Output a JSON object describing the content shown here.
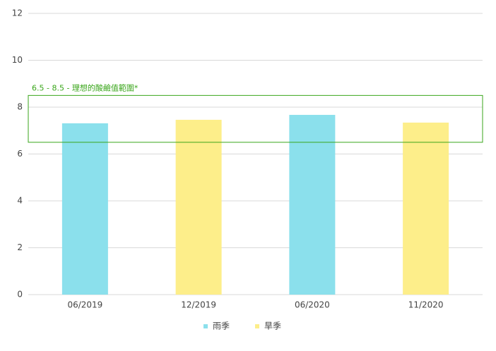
{
  "chart_data": {
    "type": "bar",
    "categories": [
      "06/2019",
      "12/2019",
      "06/2020",
      "11/2020"
    ],
    "series": [
      {
        "name": "雨季",
        "color": "#8be0ec",
        "values": [
          7.31,
          null,
          7.67,
          null
        ]
      },
      {
        "name": "旱季",
        "color": "#fdee8a",
        "values": [
          null,
          7.46,
          null,
          7.34
        ]
      }
    ],
    "ylim": [
      0,
      12
    ],
    "yticks": [
      0,
      2,
      4,
      6,
      8,
      10,
      12
    ],
    "grid": true,
    "band": {
      "from": 6.5,
      "to": 8.5,
      "label": "6.5 - 8.5 - 理想的酸鹼值範圍*",
      "color": "#3aa61b"
    },
    "legend": "bottom"
  }
}
